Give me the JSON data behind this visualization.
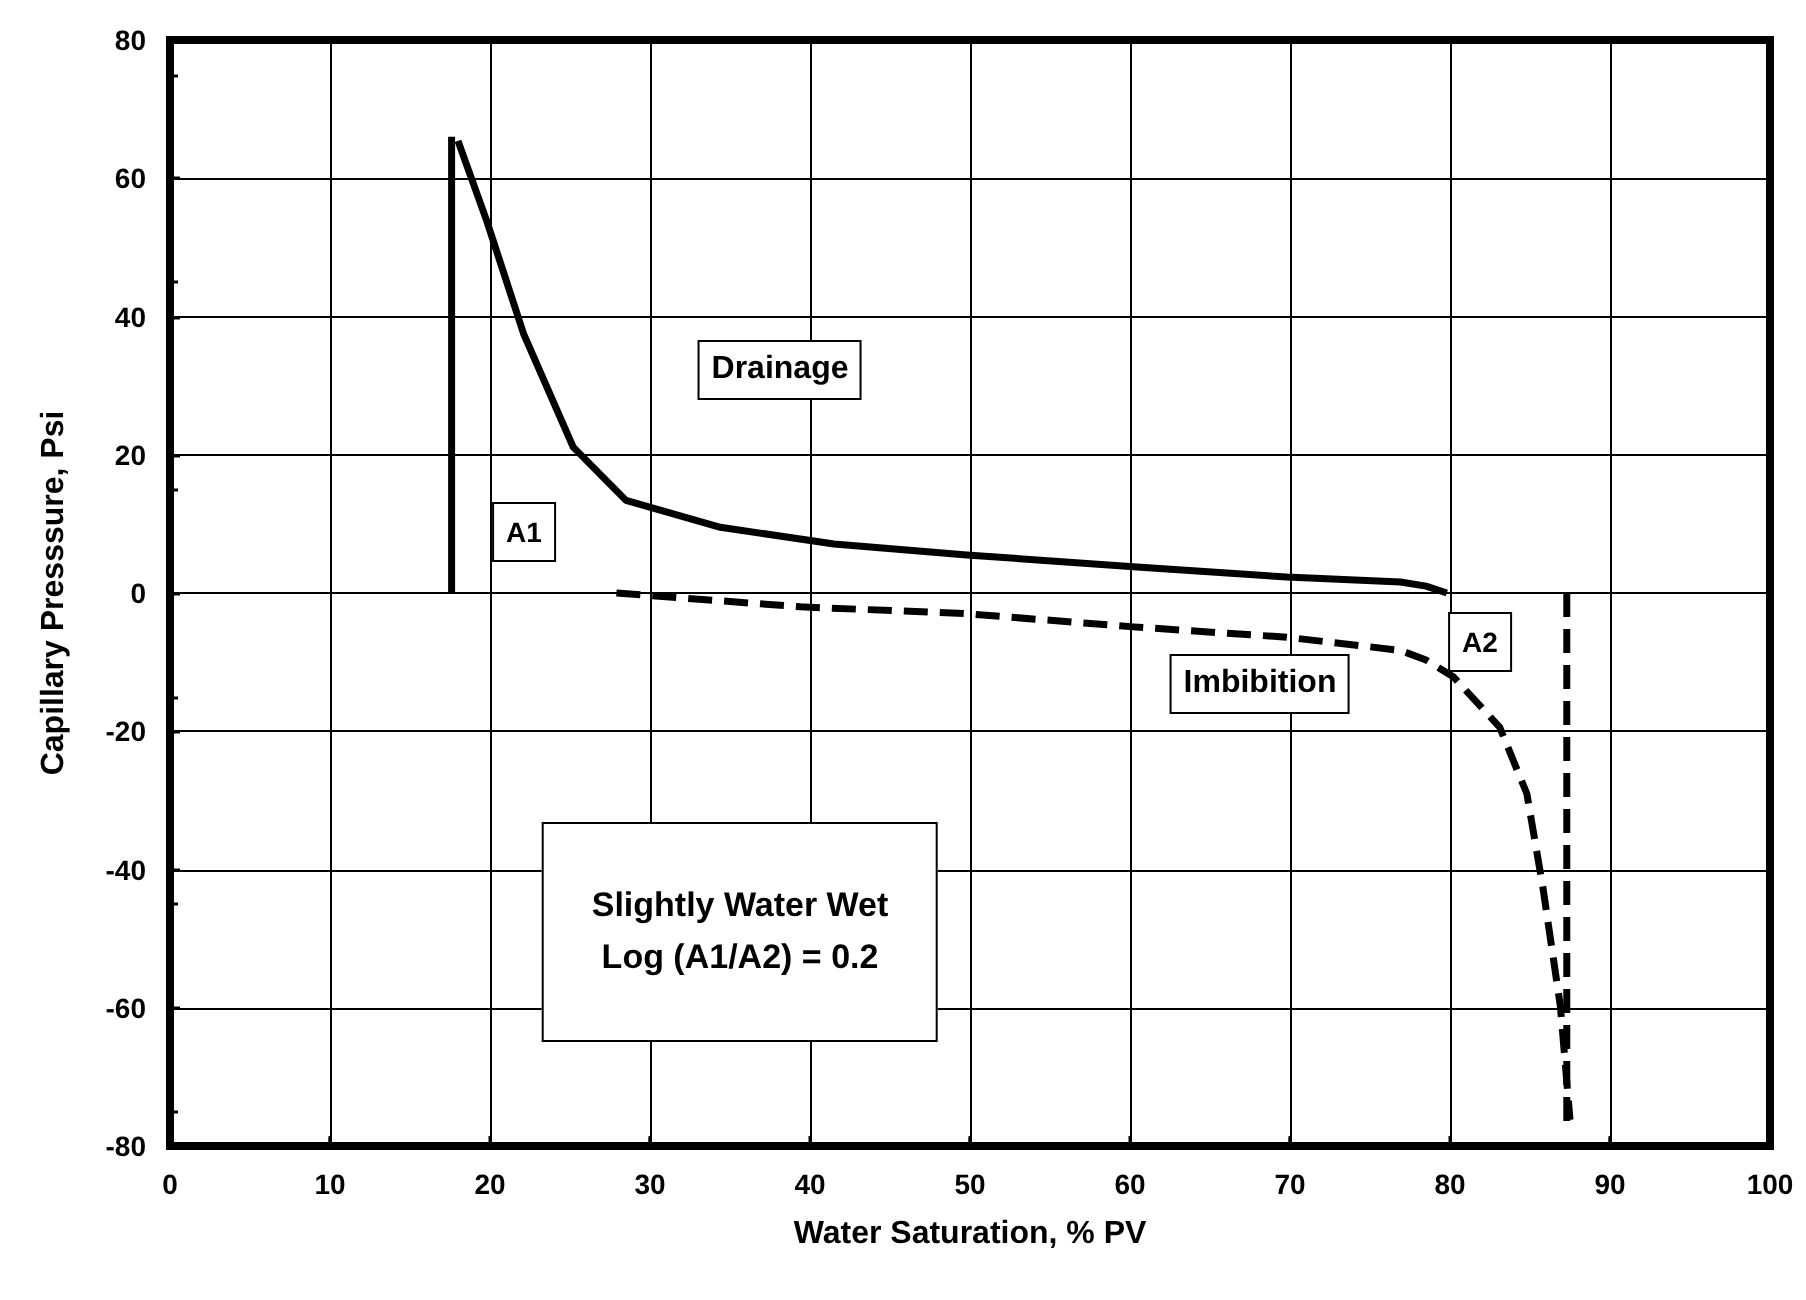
{
  "chart_data": {
    "type": "line",
    "xlabel": "Water Saturation, % PV",
    "ylabel": "Capillary Presssure, Psi",
    "xlim": [
      0,
      100
    ],
    "xticks": [
      0,
      10,
      20,
      30,
      40,
      50,
      60,
      70,
      80,
      90,
      100
    ],
    "ylim": [
      -80,
      80
    ],
    "yticks": [
      -80,
      -60,
      -40,
      -20,
      0,
      20,
      40,
      60,
      80
    ],
    "grid": true,
    "marker": "none",
    "series": [
      {
        "color": "#000000",
        "line_style": "solid",
        "x": [
          17.6,
          17.6
        ],
        "values": [
          0,
          66
        ]
      },
      {
        "color": "#000000",
        "line_style": "solid",
        "x": [
          18.0,
          19.8,
          22.1,
          25.2,
          28.5,
          34.4,
          41.5,
          49.8,
          60.2,
          69.8,
          76.9,
          78.5,
          79.8
        ],
        "values": [
          65.4,
          53.8,
          37.5,
          21.1,
          13.4,
          9.5,
          7.1,
          5.5,
          3.8,
          2.3,
          1.6,
          1.0,
          0
        ]
      },
      {
        "color": "#000000",
        "line_style": "dashed",
        "x": [
          27.9,
          39.4,
          49.8,
          60.2,
          69.8,
          76.9,
          78.5,
          80.2,
          83.1,
          84.8,
          85.8,
          86.9,
          87.5
        ],
        "values": [
          0,
          -2,
          -3,
          -4.9,
          -6.4,
          -8.3,
          -9.7,
          -12.1,
          -19.4,
          -29,
          -42.5,
          -59.8,
          -76.2
        ]
      },
      {
        "color": "#000000",
        "line_style": "dashed",
        "x": [
          87.3,
          87.3
        ],
        "values": [
          0,
          -77
        ]
      }
    ],
    "annotations": [
      "Drainage",
      "A1",
      "A2",
      "Imbibition",
      "Slightly Water Wet\nLog (A1/A2) = 0.2"
    ]
  }
}
